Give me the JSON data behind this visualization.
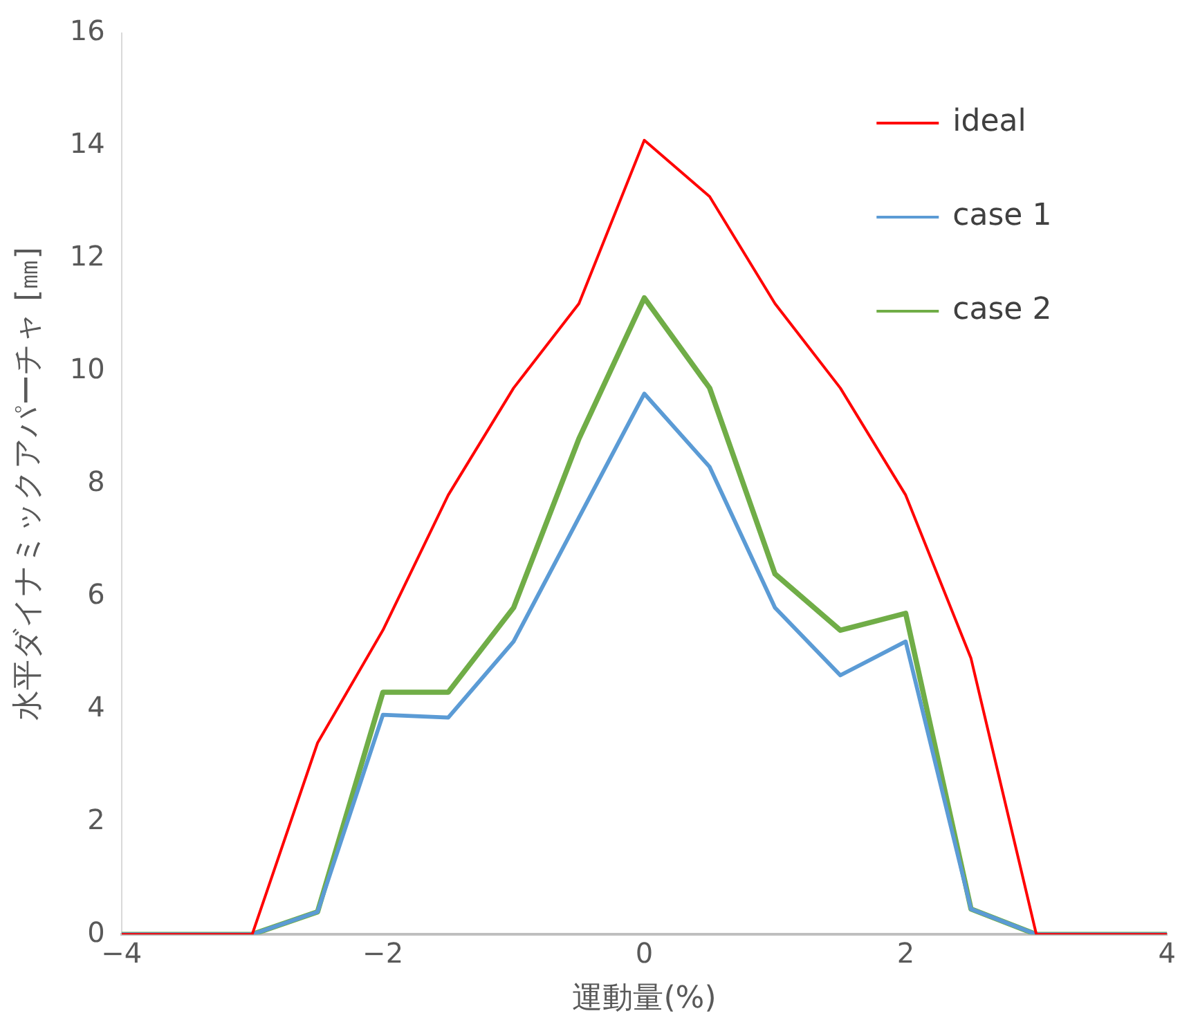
{
  "chart_data": {
    "type": "line",
    "xlabel": "運動量(%)",
    "ylabel": "水平ダイナミックアパーチャ [㎜]",
    "x": [
      -4,
      -3.5,
      -3,
      -2.5,
      -2,
      -1.5,
      -1,
      -0.5,
      0,
      0.5,
      1,
      1.5,
      2,
      2.5,
      3,
      3.5,
      4
    ],
    "series": [
      {
        "name": "ideal",
        "color": "#ff0000",
        "values": [
          0,
          0,
          0,
          3.4,
          5.4,
          7.8,
          9.7,
          11.2,
          14.1,
          13.1,
          11.2,
          9.7,
          7.8,
          4.9,
          0,
          0,
          0
        ]
      },
      {
        "name": "case 1",
        "color": "#5b9bd5",
        "values": [
          0,
          0,
          0,
          0.4,
          3.9,
          3.85,
          5.2,
          7.4,
          9.6,
          8.3,
          5.8,
          4.6,
          5.2,
          0.45,
          0,
          0,
          0
        ]
      },
      {
        "name": "case 2",
        "color": "#70ad47",
        "values": [
          0,
          0,
          0,
          0.4,
          4.3,
          4.3,
          5.8,
          8.8,
          11.3,
          9.7,
          6.4,
          5.4,
          5.7,
          0.45,
          0,
          0,
          0
        ]
      }
    ],
    "xlim": [
      -4,
      4
    ],
    "xticks": [
      {
        "value": -4,
        "label": "−4"
      },
      {
        "value": -2,
        "label": "−2"
      },
      0,
      2,
      4
    ],
    "ylim": [
      0,
      16
    ],
    "yticks": [
      0,
      2,
      4,
      6,
      8,
      10,
      12,
      14,
      16
    ],
    "grid": false,
    "legend": "top right",
    "marker": "none",
    "line_style": "solid"
  }
}
